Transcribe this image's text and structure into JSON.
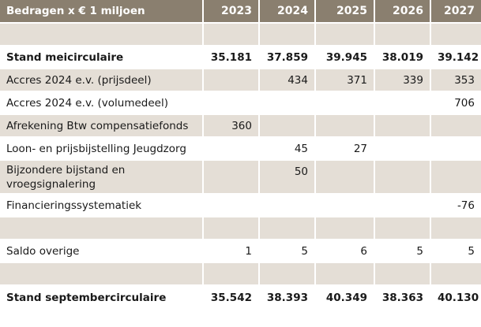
{
  "header": {
    "label": "Bedragen x € 1 miljoen",
    "years": [
      "2023",
      "2024",
      "2025",
      "2026",
      "2027"
    ]
  },
  "rows": [
    {
      "label": "",
      "values": [
        "",
        "",
        "",
        "",
        ""
      ]
    },
    {
      "label": "Stand meicirculaire",
      "values": [
        "35.181",
        "37.859",
        "39.945",
        "38.019",
        "39.142"
      ]
    },
    {
      "label": "Accres 2024  e.v. (prijsdeel)",
      "values": [
        "",
        "434",
        "371",
        "339",
        "353"
      ]
    },
    {
      "label": "Accres 2024  e.v. (volumedeel)",
      "values": [
        "",
        "",
        "",
        "",
        "706"
      ]
    },
    {
      "label": "Afrekening Btw compensatiefonds",
      "values": [
        "360",
        "",
        "",
        "",
        ""
      ]
    },
    {
      "label": "Loon- en prijsbijstelling Jeugdzorg",
      "values": [
        "",
        "45",
        "27",
        "",
        ""
      ]
    },
    {
      "label": "Bijzondere bijstand en vroegsignalering",
      "values": [
        "",
        "50",
        "",
        "",
        ""
      ]
    },
    {
      "label": "Financieringssystematiek",
      "values": [
        "",
        "",
        "",
        "",
        "-76"
      ]
    },
    {
      "label": "",
      "values": [
        "",
        "",
        "",
        "",
        ""
      ]
    },
    {
      "label": "Saldo overige",
      "values": [
        "1",
        "5",
        "6",
        "5",
        "5"
      ]
    },
    {
      "label": "",
      "values": [
        "",
        "",
        "",
        "",
        ""
      ]
    },
    {
      "label": "Stand septembercirculaire",
      "values": [
        "35.542",
        "38.393",
        "40.349",
        "38.363",
        "40.130"
      ]
    }
  ]
}
